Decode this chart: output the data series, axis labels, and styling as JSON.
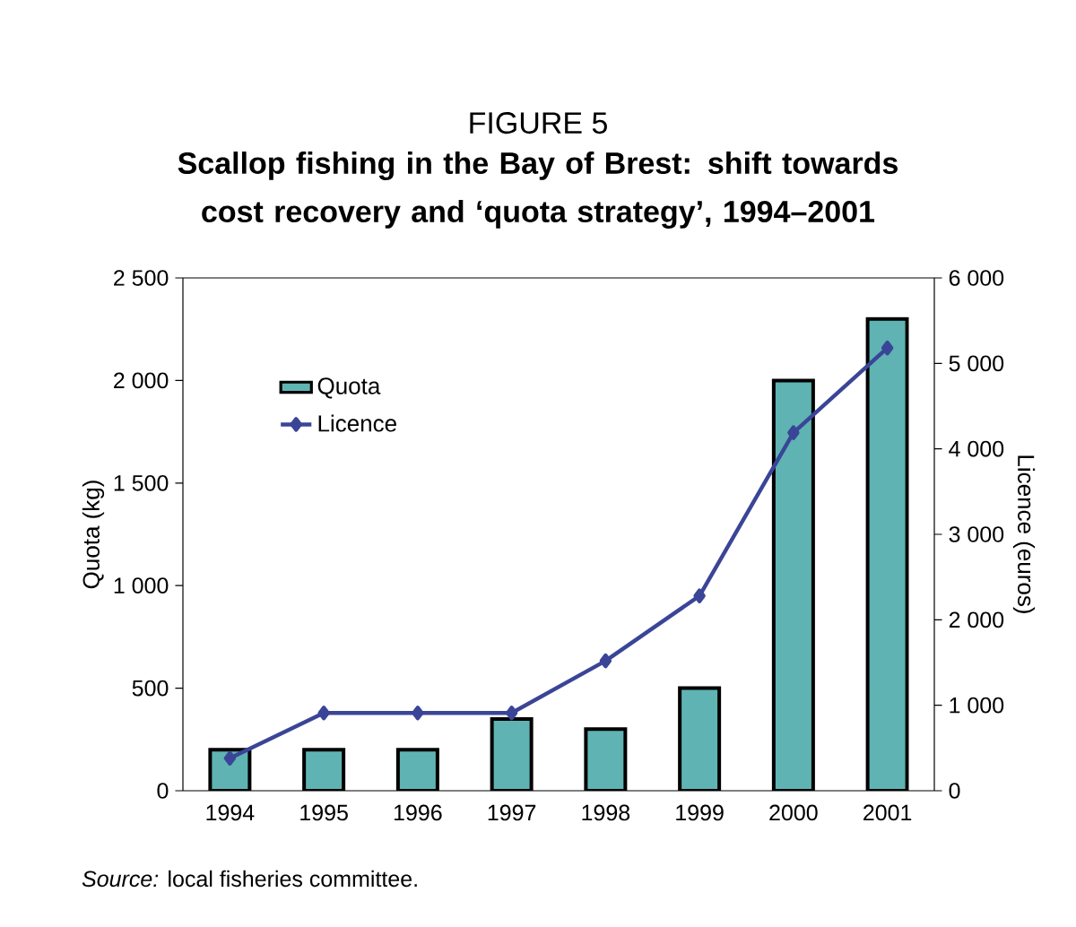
{
  "chart_data": {
    "type": "bar",
    "title": "FIGURE 5",
    "subtitle": "Scallop fishing in the Bay of Brest: shift towards cost recovery and ‘quota strategy’, 1994–2001",
    "ylabel": "Quota (kg)",
    "y2label": "Licence (euros)",
    "categories": [
      "1994",
      "1995",
      "1996",
      "1997",
      "1998",
      "1999",
      "2000",
      "2001"
    ],
    "series": [
      {
        "name": "Quota",
        "color": "#5fb3b3",
        "values": [
          200,
          200,
          200,
          350,
          300,
          500,
          2000,
          2300
        ]
      },
      {
        "name": "Licence",
        "type": "line",
        "axis": "y2",
        "color": "#3a4597",
        "marker": "diamond",
        "values": [
          380,
          910,
          910,
          910,
          1520,
          2280,
          4190,
          5180
        ]
      }
    ],
    "ylim": [
      0,
      2500
    ],
    "yticks": [
      0,
      500,
      {
        "value": 1000,
        "label": "1 000"
      },
      {
        "value": 1500,
        "label": "1 500"
      },
      {
        "value": 2000,
        "label": "2 000"
      },
      {
        "value": 2500,
        "label": "2 500"
      }
    ],
    "y2lim": [
      0,
      6000
    ],
    "y2ticks": [
      0,
      {
        "value": 1000,
        "label": "1 000"
      },
      {
        "value": 2000,
        "label": "2 000"
      },
      {
        "value": 3000,
        "label": "3 000"
      },
      {
        "value": 4000,
        "label": "4 000"
      },
      {
        "value": 5000,
        "label": "5 000"
      },
      {
        "value": 6000,
        "label": "6 000"
      }
    ],
    "legend": "top left",
    "annotations": [
      "*Source:* local fisheries committee."
    ]
  }
}
